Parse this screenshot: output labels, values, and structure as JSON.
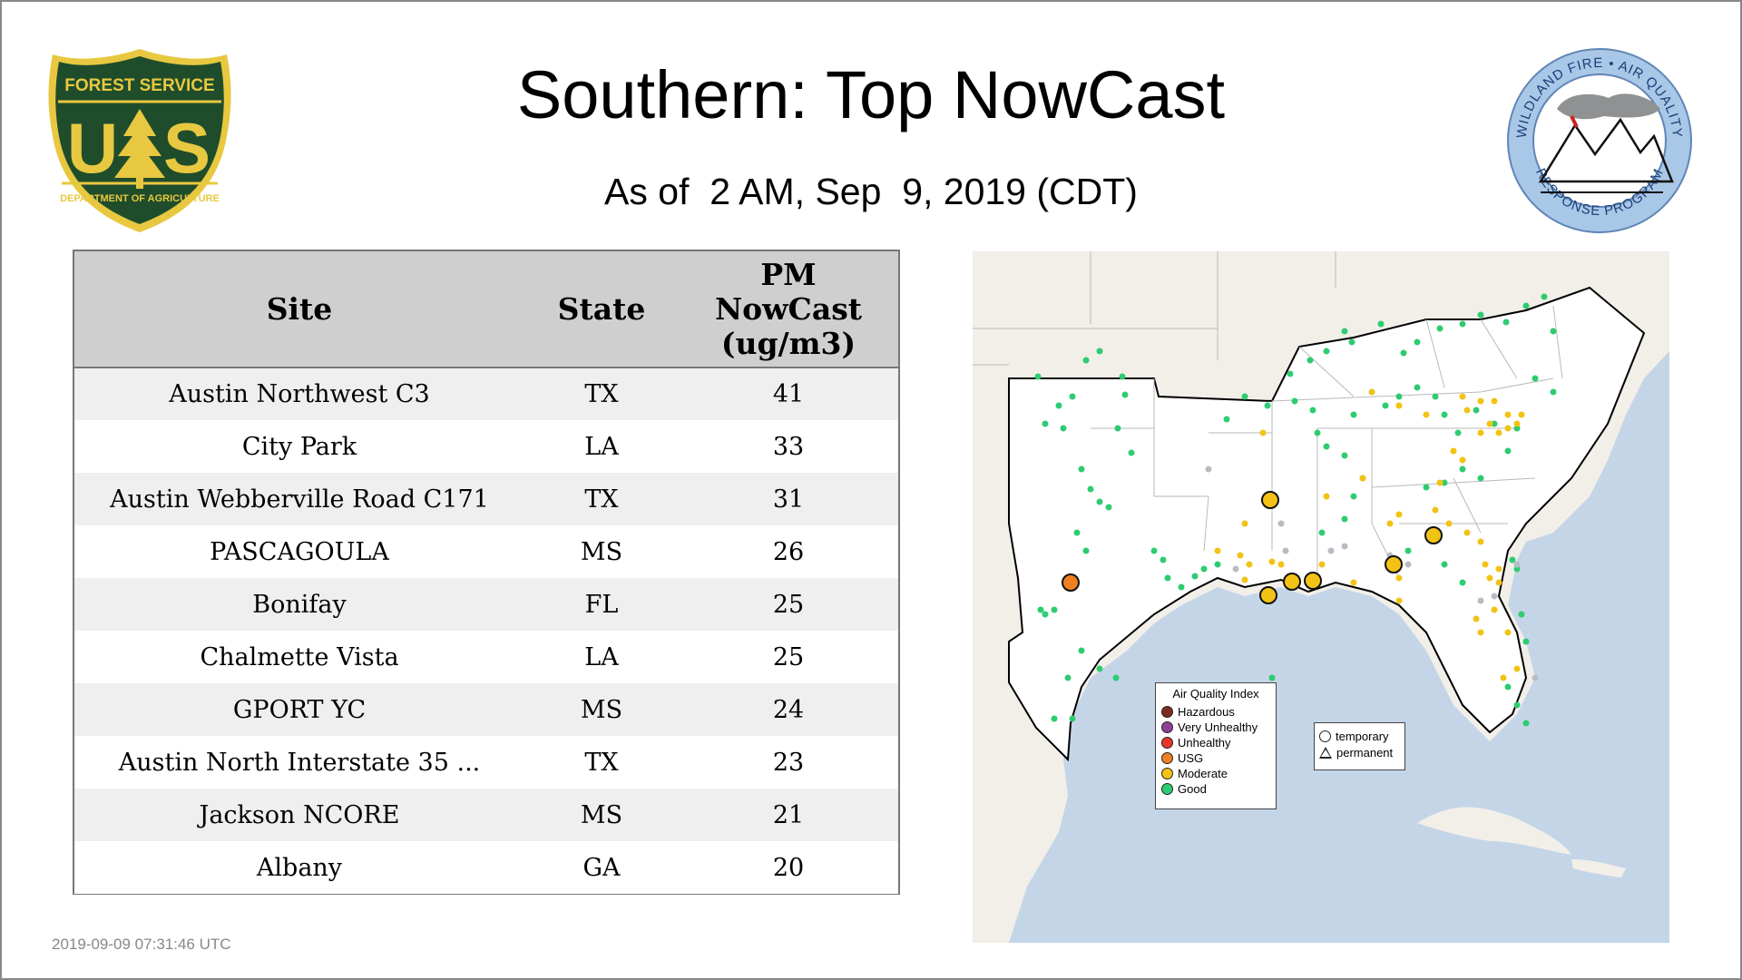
{
  "page": {
    "title": "Southern: Top NowCast",
    "subtitle": "As of  2 AM, Sep  9, 2019 (CDT)",
    "timestamp": "2019-09-09 07:31:46 UTC"
  },
  "logos": {
    "forest_service": {
      "top_text": "FOREST SERVICE",
      "bottom_text": "DEPARTMENT OF AGRICULTURE",
      "letter_left": "U",
      "letter_right": "S",
      "colors": {
        "shield": "#1f4d2b",
        "rim": "#e8c840",
        "tree": "#e8c840"
      }
    },
    "wildland_fire": {
      "top_text": "WILDLAND FIRE • AIR QUALITY",
      "bottom_text": "RESPONSE PROGRAM",
      "colors": {
        "ring": "#a9c7e6",
        "text": "#1d3f7a"
      }
    }
  },
  "table": {
    "headers": {
      "site": "Site",
      "state": "State",
      "pm_line1": "PM",
      "pm_line2": "NowCast",
      "pm_line3": "(ug/m3)"
    },
    "rows": [
      {
        "site": "Austin Northwest C3",
        "state": "TX",
        "value": "41"
      },
      {
        "site": "City Park",
        "state": "LA",
        "value": "33"
      },
      {
        "site": "Austin Webberville Road C171",
        "state": "TX",
        "value": "31"
      },
      {
        "site": "PASCAGOULA",
        "state": "MS",
        "value": "26"
      },
      {
        "site": "Bonifay",
        "state": "FL",
        "value": "25"
      },
      {
        "site": "Chalmette Vista",
        "state": "LA",
        "value": "25"
      },
      {
        "site": "GPORT YC",
        "state": "MS",
        "value": "24"
      },
      {
        "site": "Austin North Interstate 35 ...",
        "state": "TX",
        "value": "23"
      },
      {
        "site": "Jackson NCORE",
        "state": "MS",
        "value": "21"
      },
      {
        "site": "Albany",
        "state": "GA",
        "value": "20"
      }
    ]
  },
  "map": {
    "legend_title": "Air Quality Index",
    "aqi_categories": [
      {
        "label": "Hazardous",
        "color": "#7e2a1e"
      },
      {
        "label": "Very Unhealthy",
        "color": "#8f3f97"
      },
      {
        "label": "Unhealthy",
        "color": "#e8352a"
      },
      {
        "label": "USG",
        "color": "#ee7f22"
      },
      {
        "label": "Moderate",
        "color": "#f2c314"
      },
      {
        "label": "Good",
        "color": "#2ecc71"
      }
    ],
    "shape_legend": [
      {
        "label": "temporary",
        "symbol": "circle"
      },
      {
        "label": "permanent",
        "symbol": "triangle"
      }
    ],
    "colors": {
      "land": "#f2efe9",
      "water": "#c5d5e8",
      "region_land": "#ffffff",
      "border": "#000000",
      "no_data": "#b8bcc2"
    }
  }
}
